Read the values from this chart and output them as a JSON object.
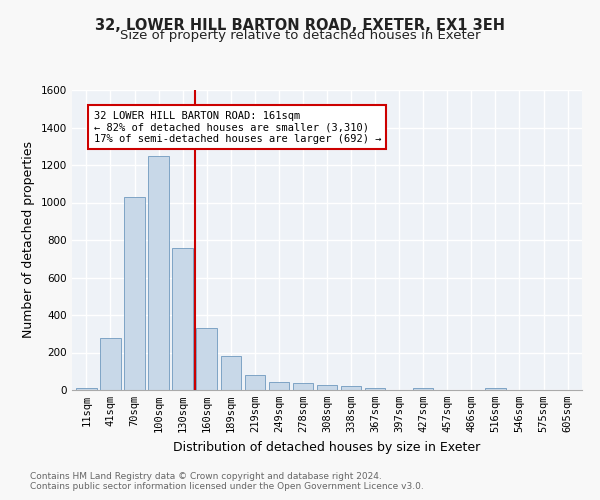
{
  "title1": "32, LOWER HILL BARTON ROAD, EXETER, EX1 3EH",
  "title2": "Size of property relative to detached houses in Exeter",
  "xlabel": "Distribution of detached houses by size in Exeter",
  "ylabel": "Number of detached properties",
  "bar_color": "#c8d8e8",
  "bar_edge_color": "#5a8ab5",
  "categories": [
    "11sqm",
    "41sqm",
    "70sqm",
    "100sqm",
    "130sqm",
    "160sqm",
    "189sqm",
    "219sqm",
    "249sqm",
    "278sqm",
    "308sqm",
    "338sqm",
    "367sqm",
    "397sqm",
    "427sqm",
    "457sqm",
    "486sqm",
    "516sqm",
    "546sqm",
    "575sqm",
    "605sqm"
  ],
  "values": [
    10,
    280,
    1030,
    1250,
    760,
    330,
    180,
    80,
    45,
    38,
    25,
    20,
    12,
    0,
    13,
    0,
    0,
    13,
    0,
    0,
    0
  ],
  "ylim": [
    0,
    1600
  ],
  "yticks": [
    0,
    200,
    400,
    600,
    800,
    1000,
    1200,
    1400,
    1600
  ],
  "marker_bin_index": 5,
  "marker_label_line1": "32 LOWER HILL BARTON ROAD: 161sqm",
  "marker_label_line2": "← 82% of detached houses are smaller (3,310)",
  "marker_label_line3": "17% of semi-detached houses are larger (692) →",
  "marker_color": "#cc0000",
  "footer1": "Contains HM Land Registry data © Crown copyright and database right 2024.",
  "footer2": "Contains public sector information licensed under the Open Government Licence v3.0.",
  "bg_color": "#eef2f7",
  "grid_color": "#ffffff",
  "fig_bg_color": "#f8f8f8",
  "title1_fontsize": 10.5,
  "title2_fontsize": 9.5,
  "axis_label_fontsize": 9,
  "tick_fontsize": 7.5,
  "annotation_fontsize": 7.5,
  "footer_fontsize": 6.5
}
